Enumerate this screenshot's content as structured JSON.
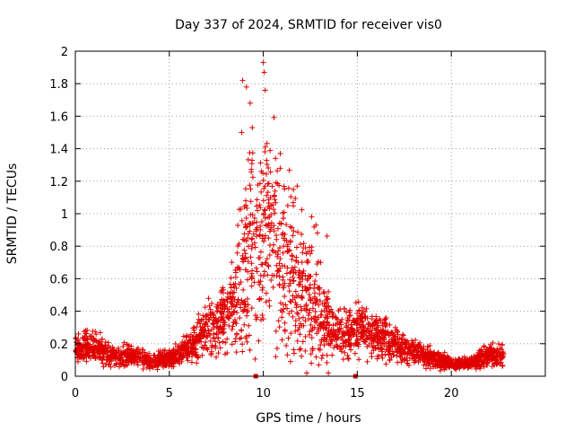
{
  "chart_data": {
    "type": "scatter",
    "title": "Day 337 of 2024, SRMTID for receiver vis0",
    "xlabel": "GPS time / hours",
    "ylabel": "SRMTID / TECUs",
    "xlim": [
      0,
      25
    ],
    "ylim": [
      0,
      2
    ],
    "xticks": [
      "0",
      "5",
      "10",
      "15",
      "20"
    ],
    "yticks": [
      "0",
      "0.2",
      "0.4",
      "0.6",
      "0.8",
      "1",
      "1.2",
      "1.4",
      "1.6",
      "1.8",
      "2"
    ],
    "grid": true,
    "marker": "+",
    "marker_color": "#e00000",
    "x_range_of_data": [
      0,
      22.8
    ],
    "series": [
      {
        "name": "SRMTID",
        "profile": [
          {
            "x": 0.0,
            "y": 0.17
          },
          {
            "x": 1.0,
            "y": 0.18
          },
          {
            "x": 2.0,
            "y": 0.12
          },
          {
            "x": 3.0,
            "y": 0.13
          },
          {
            "x": 4.0,
            "y": 0.09
          },
          {
            "x": 5.0,
            "y": 0.11
          },
          {
            "x": 6.0,
            "y": 0.17
          },
          {
            "x": 7.0,
            "y": 0.28
          },
          {
            "x": 8.0,
            "y": 0.36
          },
          {
            "x": 8.8,
            "y": 0.55
          },
          {
            "x": 9.3,
            "y": 0.85
          },
          {
            "x": 9.8,
            "y": 0.75
          },
          {
            "x": 10.2,
            "y": 0.9
          },
          {
            "x": 11.0,
            "y": 0.7
          },
          {
            "x": 11.8,
            "y": 0.58
          },
          {
            "x": 12.5,
            "y": 0.45
          },
          {
            "x": 13.5,
            "y": 0.3
          },
          {
            "x": 14.5,
            "y": 0.25
          },
          {
            "x": 15.2,
            "y": 0.3
          },
          {
            "x": 16.0,
            "y": 0.26
          },
          {
            "x": 17.0,
            "y": 0.2
          },
          {
            "x": 18.0,
            "y": 0.16
          },
          {
            "x": 19.0,
            "y": 0.11
          },
          {
            "x": 20.0,
            "y": 0.08
          },
          {
            "x": 21.0,
            "y": 0.08
          },
          {
            "x": 22.0,
            "y": 0.13
          },
          {
            "x": 22.8,
            "y": 0.12
          }
        ],
        "peaks": [
          {
            "x": 8.9,
            "y": 1.82
          },
          {
            "x": 9.1,
            "y": 1.78
          },
          {
            "x": 10.0,
            "y": 1.93
          },
          {
            "x": 10.05,
            "y": 1.87
          },
          {
            "x": 10.1,
            "y": 1.76
          },
          {
            "x": 9.3,
            "y": 1.68
          },
          {
            "x": 8.85,
            "y": 1.5
          },
          {
            "x": 10.1,
            "y": 1.41
          },
          {
            "x": 10.9,
            "y": 1.37
          },
          {
            "x": 10.9,
            "y": 1.28
          },
          {
            "x": 11.8,
            "y": 1.17
          },
          {
            "x": 11.3,
            "y": 1.05
          },
          {
            "x": 12.8,
            "y": 0.93
          }
        ],
        "markers_on_axis": [
          {
            "x": 9.6,
            "y": 0
          },
          {
            "x": 14.9,
            "y": 0
          }
        ]
      }
    ]
  }
}
